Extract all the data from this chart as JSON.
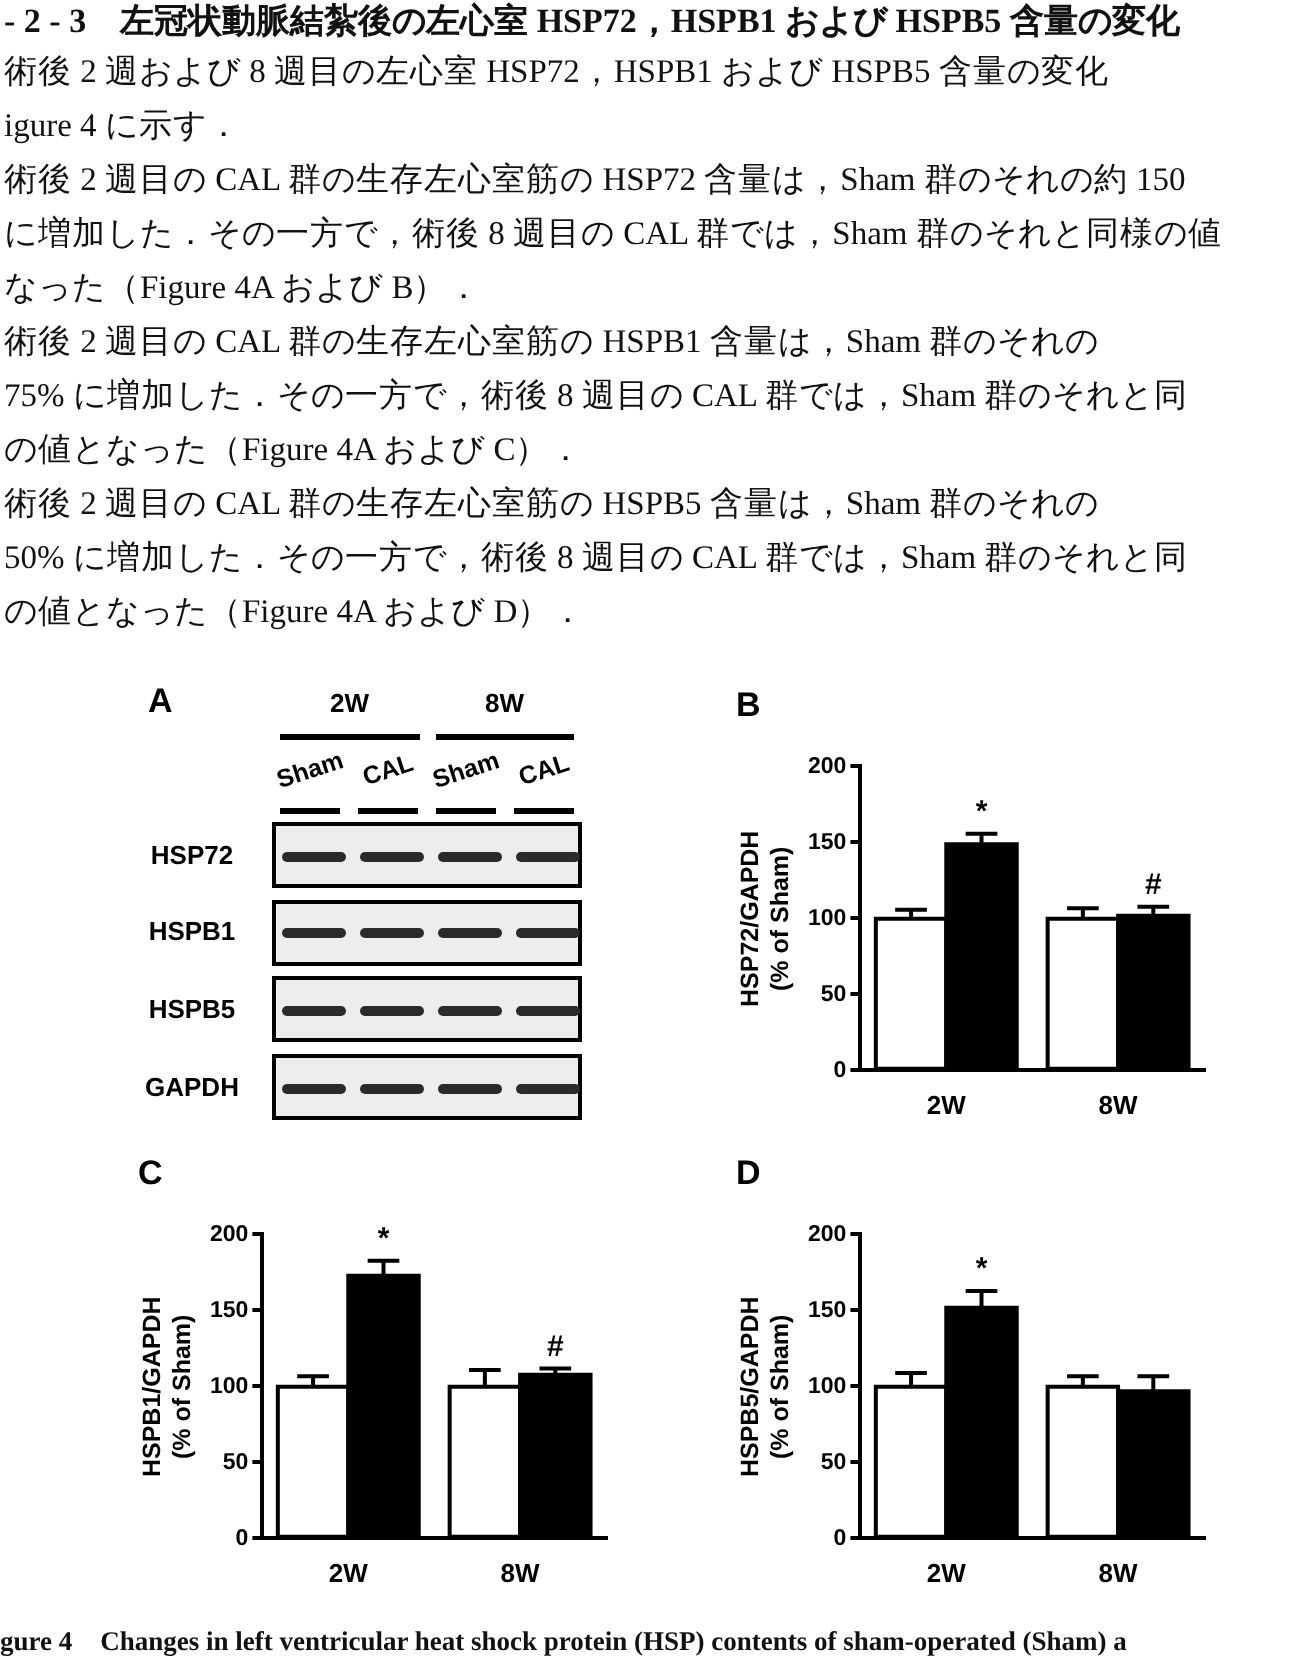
{
  "chart_data": [
    {
      "type": "other",
      "title": "- 2 - 3　左冠状動脈結紮後の左心室 HSP72，HSPB1 および HSPB5 含量の変化",
      "annotations": [
        "術後 2 週および 8 週目の左心室 HSP72，HSPB1 および HSPB5 含量の変化",
        "igure 4 に示す．",
        "術後 2 週目の CAL 群の生存左心室筋の HSP72 含量は，Sham 群のそれの約 150",
        "に増加した．その一方で，術後 8 週目の CAL 群では，Sham 群のそれと同様の値",
        "なった（Figure 4A および B）．",
        "術後 2 週目の CAL 群の生存左心室筋の HSPB1 含量は，Sham 群のそれの",
        "75% に増加した．その一方で，術後 8 週目の CAL 群では，Sham 群のそれと同",
        "の値となった（Figure 4A および C）．",
        "術後 2 週目の CAL 群の生存左心室筋の HSPB5 含量は，Sham 群のそれの",
        "50% に増加した．その一方で，術後 8 週目の CAL 群では，Sham 群のそれと同",
        "の値となった（Figure 4A および D）．"
      ]
    },
    {
      "type": "other",
      "title": "A",
      "categories": [
        "Sham",
        "CAL",
        "Sham",
        "CAL"
      ],
      "y_categories": [
        "HSP72",
        "HSPB1",
        "HSPB5",
        "GAPDH"
      ],
      "annotations": [
        "2W",
        "8W"
      ]
    },
    {
      "type": "bar",
      "title": "B",
      "ylabel": "HSP72/GAPDH\n(% of Sham)",
      "categories": [
        "2W",
        "8W"
      ],
      "ylim": [
        0,
        200
      ],
      "yticks": [
        0,
        50,
        100,
        150,
        200
      ],
      "series": [
        {
          "color": "#ffffff",
          "values": [
            100,
            100
          ],
          "errors": [
            [
              100,
              106
            ],
            [
              100,
              107
            ]
          ]
        },
        {
          "color": "#000000",
          "values": [
            149,
            102
          ],
          "errors": [
            [
              149,
              156
            ],
            [
              102,
              108
            ]
          ],
          "value_labels": [
            "*",
            "#"
          ]
        }
      ]
    },
    {
      "type": "bar",
      "title": "C",
      "ylabel": "HSPB1/GAPDH\n(% of Sham)",
      "categories": [
        "2W",
        "8W"
      ],
      "ylim": [
        0,
        200
      ],
      "yticks": [
        0,
        50,
        100,
        150,
        200
      ],
      "series": [
        {
          "color": "#ffffff",
          "values": [
            100,
            100
          ],
          "errors": [
            [
              100,
              107
            ],
            [
              100,
              111
            ]
          ]
        },
        {
          "color": "#000000",
          "values": [
            173,
            108
          ],
          "errors": [
            [
              173,
              183
            ],
            [
              108,
              112
            ]
          ],
          "value_labels": [
            "*",
            "#"
          ]
        }
      ]
    },
    {
      "type": "bar",
      "title": "D",
      "ylabel": "HSPB5/GAPDH\n(% of Sham)",
      "categories": [
        "2W",
        "8W"
      ],
      "ylim": [
        0,
        200
      ],
      "yticks": [
        0,
        50,
        100,
        150,
        200
      ],
      "series": [
        {
          "color": "#ffffff",
          "values": [
            100,
            100
          ],
          "errors": [
            [
              100,
              109
            ],
            [
              100,
              107
            ]
          ]
        },
        {
          "color": "#000000",
          "values": [
            152,
            97
          ],
          "errors": [
            [
              152,
              163
            ],
            [
              97,
              107
            ]
          ],
          "value_labels": [
            "*",
            null
          ]
        }
      ]
    },
    {
      "type": "other",
      "title": "gure 4　Changes in left ventricular heat shock protein (HSP) contents of sham-operated (Sham) a"
    }
  ]
}
